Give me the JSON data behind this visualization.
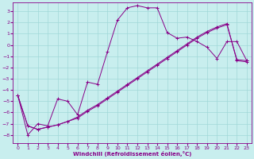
{
  "xlabel": "Windchill (Refroidissement éolien,°C)",
  "xlim_min": -0.5,
  "xlim_max": 23.5,
  "ylim_min": -8.7,
  "ylim_max": 3.8,
  "xticks": [
    0,
    1,
    2,
    3,
    4,
    5,
    6,
    7,
    8,
    9,
    10,
    11,
    12,
    13,
    14,
    15,
    16,
    17,
    18,
    19,
    20,
    21,
    22,
    23
  ],
  "yticks": [
    3,
    2,
    1,
    0,
    -1,
    -2,
    -3,
    -4,
    -5,
    -6,
    -7,
    -8
  ],
  "bg_color": "#c8eeee",
  "grid_color": "#a0d8d8",
  "line_color": "#880088",
  "line1_x": [
    0,
    1,
    2,
    3,
    4,
    5,
    6,
    7,
    8,
    9,
    10,
    11,
    12,
    13,
    14,
    15,
    16,
    17,
    18,
    19,
    20,
    21,
    22,
    23
  ],
  "line1_y": [
    -4.5,
    -8.0,
    -7.0,
    -7.2,
    -4.8,
    -5.0,
    -6.2,
    -3.3,
    -3.5,
    -0.6,
    2.2,
    3.3,
    3.5,
    3.3,
    3.3,
    1.1,
    0.6,
    0.7,
    0.3,
    -0.2,
    -1.2,
    0.3,
    0.3,
    -1.4
  ],
  "line2_x": [
    0,
    1,
    2,
    3,
    4,
    5,
    6,
    7,
    8,
    9,
    10,
    11,
    12,
    13,
    14,
    15,
    16,
    17,
    18,
    19,
    20,
    21,
    22,
    23
  ],
  "line2_y": [
    -4.5,
    -7.2,
    -7.5,
    -7.3,
    -7.1,
    -6.8,
    -6.4,
    -5.8,
    -5.3,
    -4.7,
    -4.1,
    -3.5,
    -2.9,
    -2.3,
    -1.7,
    -1.1,
    -0.5,
    0.1,
    0.7,
    1.2,
    1.6,
    1.9,
    -1.4,
    -1.5
  ],
  "line3_x": [
    0,
    1,
    2,
    3,
    4,
    5,
    6,
    7,
    8,
    9,
    10,
    11,
    12,
    13,
    14,
    15,
    16,
    17,
    18,
    19,
    20,
    21,
    22,
    23
  ],
  "line3_y": [
    -4.5,
    -7.2,
    -7.5,
    -7.3,
    -7.1,
    -6.8,
    -6.5,
    -5.9,
    -5.4,
    -4.8,
    -4.2,
    -3.6,
    -3.0,
    -2.4,
    -1.8,
    -1.2,
    -0.6,
    0.0,
    0.6,
    1.1,
    1.5,
    1.8,
    -1.3,
    -1.4
  ],
  "tick_fontsize": 4.5,
  "xlabel_fontsize": 5.0
}
